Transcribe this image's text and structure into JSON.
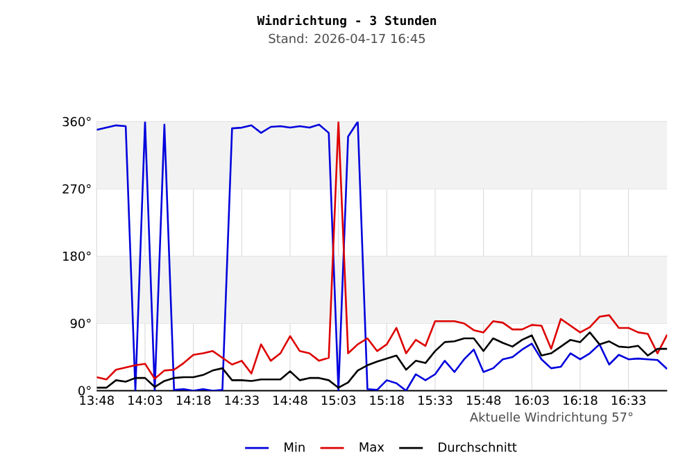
{
  "chart_data": {
    "type": "line",
    "title": "Windrichtung - 3 Stunden",
    "subtitle": "Stand: 2026-04-17 16:45",
    "annotations": [
      "Aktuelle Windrichtung 57°"
    ],
    "x": [
      13.8,
      13.85,
      13.9,
      13.95,
      14.0,
      14.05,
      14.1,
      14.15,
      14.2,
      14.25,
      14.3,
      14.35,
      14.4,
      14.45,
      14.5,
      14.55,
      14.6,
      14.65,
      14.7,
      14.75,
      14.8,
      14.85,
      14.9,
      14.95,
      15.0,
      15.05,
      15.1,
      15.15,
      15.2,
      15.25,
      15.3,
      15.35,
      15.4,
      15.45,
      15.5,
      15.55,
      15.6,
      15.65,
      15.7,
      15.75,
      15.8,
      15.85,
      15.9,
      15.95,
      16.0,
      16.05,
      16.1,
      16.15,
      16.2,
      16.25,
      16.3,
      16.35,
      16.4,
      16.45,
      16.5,
      16.55,
      16.6,
      16.65,
      16.7,
      16.75
    ],
    "series": [
      {
        "name": "Min",
        "color": "#0000dd",
        "values": [
          349,
          352,
          355,
          354,
          0,
          360,
          0,
          356,
          1,
          2,
          0,
          2,
          0,
          1,
          351,
          352,
          355,
          345,
          353,
          354,
          352,
          354,
          352,
          356,
          345,
          0,
          340,
          360,
          2,
          1,
          14,
          10,
          0,
          22,
          14,
          22,
          40,
          25,
          42,
          55,
          25,
          30,
          42,
          45,
          55,
          63,
          42,
          30,
          32,
          50,
          42,
          50,
          62,
          35,
          48,
          42,
          43,
          42,
          41,
          29
        ]
      },
      {
        "name": "Max",
        "color": "#dd0000",
        "values": [
          18,
          15,
          28,
          31,
          34,
          36,
          16,
          27,
          28,
          37,
          48,
          50,
          53,
          44,
          35,
          40,
          23,
          62,
          40,
          50,
          73,
          53,
          50,
          40,
          44,
          360,
          50,
          62,
          70,
          53,
          62,
          84,
          50,
          68,
          60,
          93,
          93,
          93,
          90,
          81,
          78,
          93,
          91,
          82,
          82,
          88,
          87,
          56,
          96,
          87,
          78,
          85,
          99,
          101,
          84,
          84,
          78,
          76,
          50,
          75
        ]
      },
      {
        "name": "Durchschnitt",
        "color": "#000000",
        "values": [
          4,
          4,
          14,
          12,
          17,
          17,
          5,
          13,
          17,
          18,
          18,
          21,
          27,
          30,
          14,
          14,
          13,
          15,
          15,
          15,
          26,
          14,
          17,
          17,
          14,
          4,
          11,
          27,
          34,
          39,
          43,
          47,
          28,
          40,
          37,
          53,
          65,
          66,
          70,
          70,
          53,
          70,
          64,
          59,
          68,
          74,
          47,
          50,
          59,
          68,
          65,
          78,
          62,
          66,
          59,
          58,
          60,
          47,
          56,
          56
        ]
      }
    ],
    "xlim": [
      13.8,
      16.75
    ],
    "xticks": [
      {
        "value": 13.8,
        "label": "13:48"
      },
      {
        "value": 14.05,
        "label": "14:03"
      },
      {
        "value": 14.3,
        "label": "14:18"
      },
      {
        "value": 14.55,
        "label": "14:33"
      },
      {
        "value": 14.8,
        "label": "14:48"
      },
      {
        "value": 15.05,
        "label": "15:03"
      },
      {
        "value": 15.3,
        "label": "15:18"
      },
      {
        "value": 15.55,
        "label": "15:33"
      },
      {
        "value": 15.8,
        "label": "15:48"
      },
      {
        "value": 16.05,
        "label": "16:03"
      },
      {
        "value": 16.3,
        "label": "16:18"
      },
      {
        "value": 16.55,
        "label": "16:33"
      }
    ],
    "ylim": [
      0,
      360
    ],
    "yticks": [
      {
        "value": 0,
        "label": "0°"
      },
      {
        "value": 90,
        "label": "90°"
      },
      {
        "value": 180,
        "label": "180°"
      },
      {
        "value": 270,
        "label": "270°"
      },
      {
        "value": 360,
        "label": "360°"
      }
    ],
    "bands": [
      {
        "axis": "y",
        "from": 90,
        "to": 180,
        "color": "#f2f2f2"
      },
      {
        "axis": "y",
        "from": 270,
        "to": 360,
        "color": "#f2f2f2"
      }
    ],
    "grid": true,
    "legend": "bottom",
    "marker": "none",
    "line_style": "solid"
  }
}
